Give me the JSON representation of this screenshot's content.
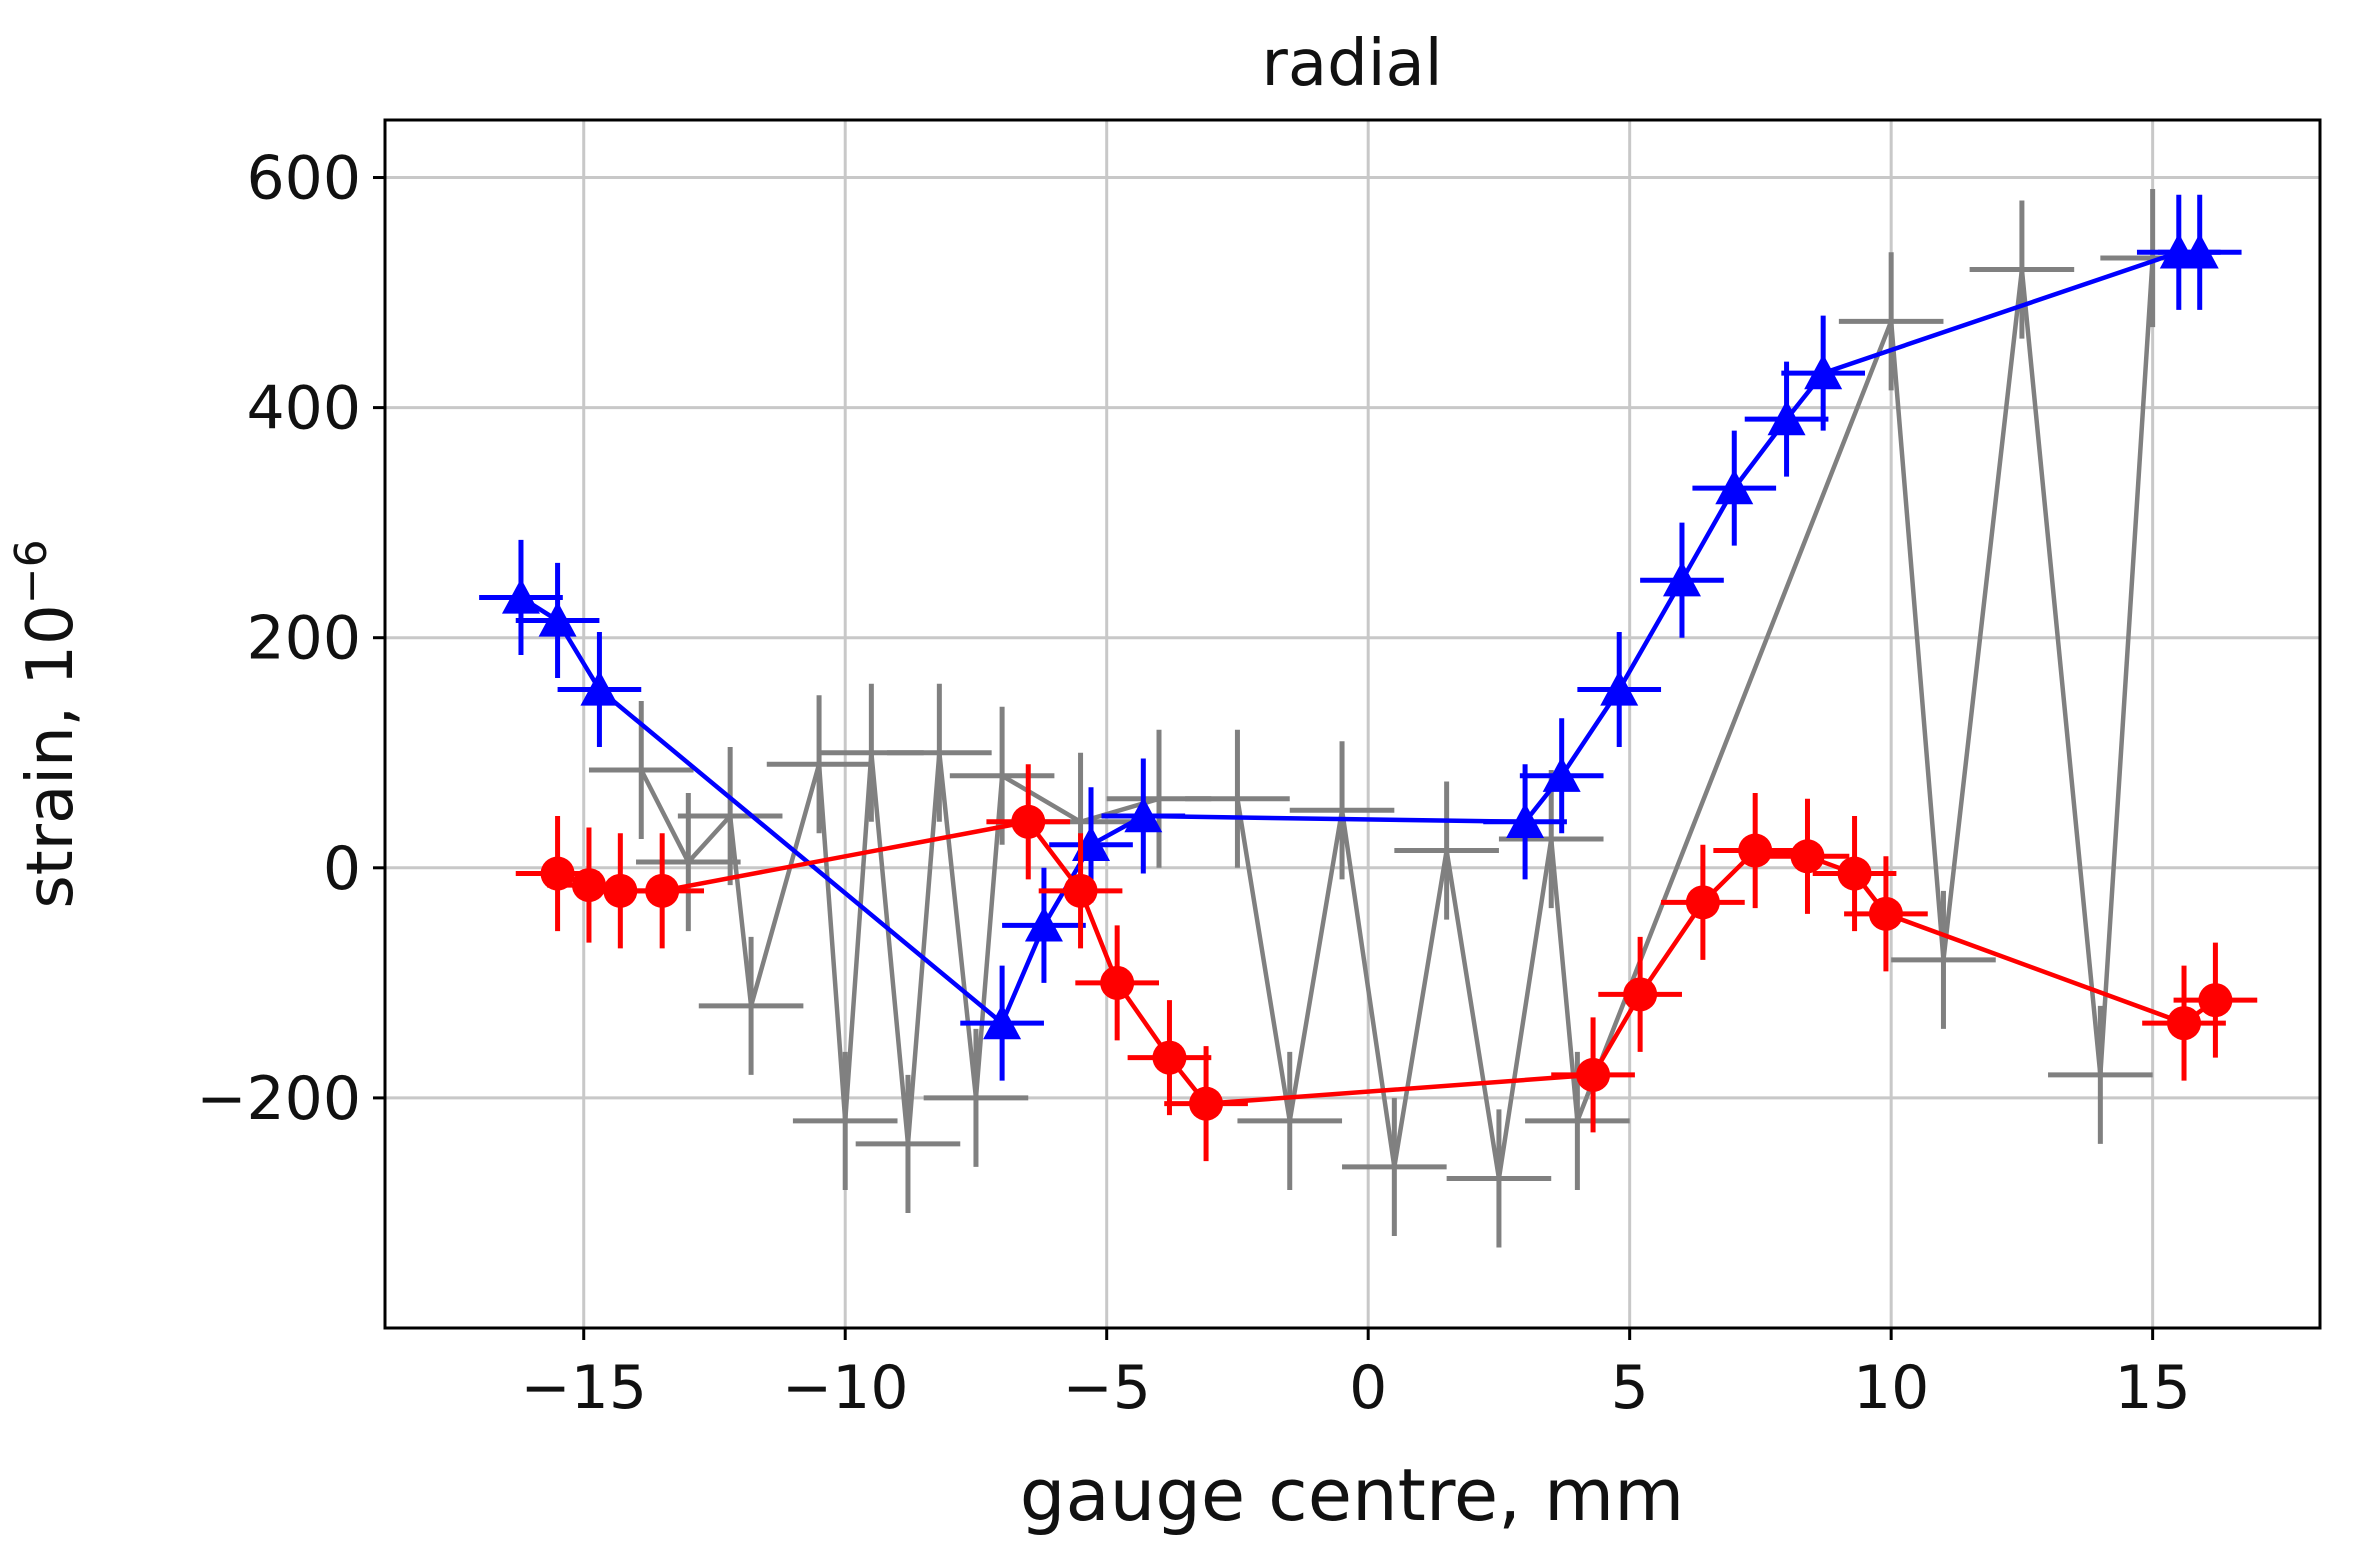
{
  "chart_data": {
    "type": "scatter",
    "title": "radial",
    "xlabel": "gauge centre, mm",
    "ylabel": "strain,  10",
    "ylabel_exponent": "−6",
    "xlim": [
      -18.8,
      18.2
    ],
    "ylim": [
      -400,
      650
    ],
    "xticks": [
      -15,
      -10,
      -5,
      0,
      5,
      10,
      15
    ],
    "xtick_labels": [
      "−15",
      "−10",
      "−5",
      "0",
      "5",
      "10",
      "15"
    ],
    "yticks": [
      -200,
      0,
      200,
      400,
      600
    ],
    "ytick_labels": [
      "−200",
      "0",
      "200",
      "400",
      "600"
    ],
    "grid": true,
    "legend": "none",
    "series": [
      {
        "color": "#808080",
        "marker": "none",
        "x": [
          -13.9,
          -13.0,
          -12.2,
          -11.8,
          -10.5,
          -10.0,
          -9.5,
          -8.8,
          -8.2,
          -7.5,
          -7.0,
          -5.5,
          -4.0,
          -2.5,
          -1.5,
          -0.5,
          0.5,
          1.5,
          2.5,
          3.5,
          4.0,
          10.0,
          11.0,
          12.5,
          14.0,
          15.0
        ],
        "y": [
          85,
          5,
          45,
          -120,
          90,
          -220,
          100,
          -240,
          100,
          -200,
          80,
          40,
          60,
          60,
          -220,
          50,
          -260,
          15,
          -270,
          25,
          -220,
          475,
          -80,
          520,
          -180,
          530
        ],
        "xerr": [
          1.0,
          1.0,
          1.0,
          1.0,
          1.0,
          1.0,
          1.0,
          1.0,
          1.0,
          1.0,
          1.0,
          1.0,
          1.0,
          1.0,
          1.0,
          1.0,
          1.0,
          1.0,
          1.0,
          1.0,
          1.0,
          1.0,
          1.0,
          1.0,
          1.0,
          1.0
        ],
        "yerr": [
          60,
          60,
          60,
          60,
          60,
          60,
          60,
          60,
          60,
          60,
          60,
          60,
          60,
          60,
          60,
          60,
          60,
          60,
          60,
          60,
          60,
          60,
          60,
          60,
          60,
          60
        ]
      },
      {
        "color": "#0000ff",
        "marker": "triangle",
        "x": [
          -16.2,
          -15.5,
          -14.7,
          -7.0,
          -6.2,
          -5.3,
          -4.3,
          3.0,
          3.7,
          4.8,
          6.0,
          7.0,
          8.0,
          8.7,
          15.5,
          15.9
        ],
        "y": [
          235,
          215,
          155,
          -135,
          -50,
          20,
          45,
          40,
          80,
          155,
          250,
          330,
          390,
          430,
          535,
          535
        ],
        "xerr": [
          0.8,
          0.8,
          0.8,
          0.8,
          0.8,
          0.8,
          0.8,
          0.8,
          0.8,
          0.8,
          0.8,
          0.8,
          0.8,
          0.8,
          0.8,
          0.8
        ],
        "yerr": [
          50,
          50,
          50,
          50,
          50,
          50,
          50,
          50,
          50,
          50,
          50,
          50,
          50,
          50,
          50,
          50
        ]
      },
      {
        "color": "#ff0000",
        "marker": "circle",
        "x": [
          -15.5,
          -14.9,
          -14.3,
          -13.5,
          -6.5,
          -5.5,
          -4.8,
          -3.8,
          -3.1,
          4.3,
          5.2,
          6.4,
          7.4,
          8.4,
          9.3,
          9.9,
          15.6,
          16.2
        ],
        "y": [
          -5,
          -15,
          -20,
          -20,
          40,
          -20,
          -100,
          -165,
          -205,
          -180,
          -110,
          -30,
          15,
          10,
          -5,
          -40,
          -135,
          -115
        ],
        "xerr": [
          0.8,
          0.8,
          0.8,
          0.8,
          0.8,
          0.8,
          0.8,
          0.8,
          0.8,
          0.8,
          0.8,
          0.8,
          0.8,
          0.8,
          0.8,
          0.8,
          0.8,
          0.8
        ],
        "yerr": [
          50,
          50,
          50,
          50,
          50,
          50,
          50,
          50,
          50,
          50,
          50,
          50,
          50,
          50,
          50,
          50,
          50,
          50
        ]
      }
    ]
  }
}
